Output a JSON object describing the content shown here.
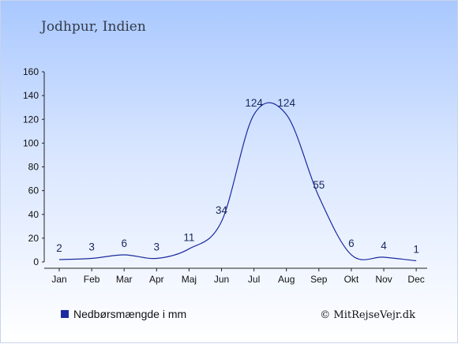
{
  "chart_data": {
    "type": "line",
    "title": "Jodhpur, Indien",
    "categories": [
      "Jan",
      "Feb",
      "Mar",
      "Apr",
      "Maj",
      "Jun",
      "Jul",
      "Aug",
      "Sep",
      "Okt",
      "Nov",
      "Dec"
    ],
    "series": [
      {
        "name": "Nedbørsmængde i mm",
        "values": [
          2,
          3,
          6,
          3,
          11,
          34,
          124,
          124,
          55,
          6,
          4,
          1
        ]
      }
    ],
    "yticks": [
      0,
      20,
      40,
      60,
      80,
      100,
      120,
      140,
      160
    ],
    "ylim": [
      0,
      160
    ],
    "grid": false,
    "legend_position": "bottom-left",
    "line_color": "#1a2aa0",
    "legend_marker_color": "#1a2aa0"
  },
  "credit": "© MitRejseVejr.dk"
}
